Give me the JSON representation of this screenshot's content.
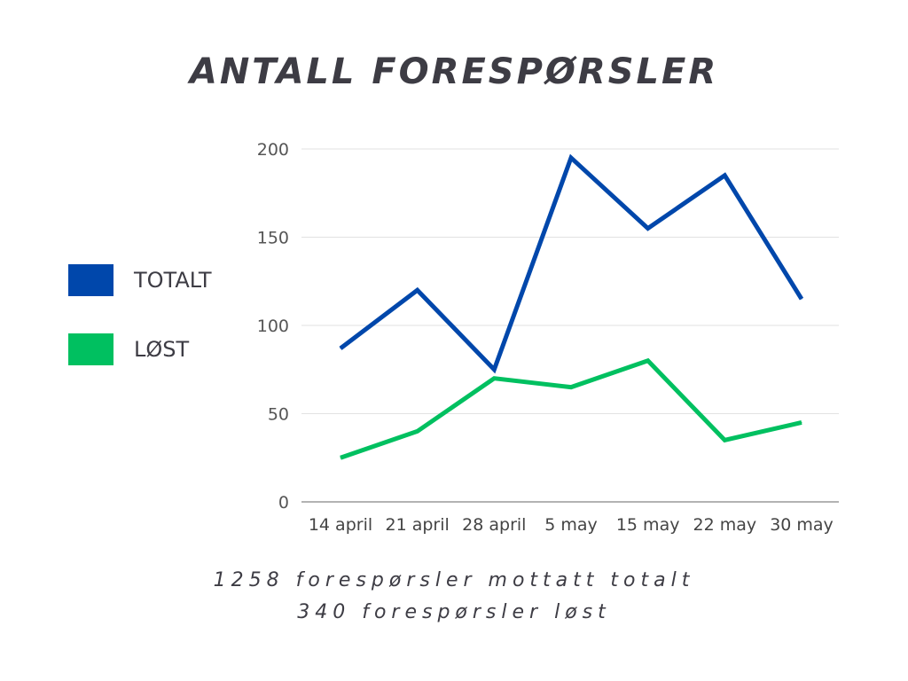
{
  "chart_data": {
    "type": "line",
    "title": "ANTALL FORESPØRSLER",
    "categories": [
      "14 april",
      "21 april",
      "28 april",
      "5 may",
      "15 may",
      "22 may",
      "30 may"
    ],
    "series": [
      {
        "name": "TOTALT",
        "color": "#0047ab",
        "values": [
          87,
          120,
          75,
          195,
          155,
          185,
          115
        ]
      },
      {
        "name": "LØST",
        "color": "#00c060",
        "values": [
          25,
          40,
          70,
          65,
          80,
          35,
          45
        ]
      }
    ],
    "ylim": [
      0,
      200
    ],
    "yticks": [
      0,
      50,
      100,
      150,
      200
    ],
    "grid": true,
    "legend_position": "left"
  },
  "notes": {
    "line1": "1258 forespørsler mottatt totalt",
    "line2": "340 forespørsler løst"
  }
}
